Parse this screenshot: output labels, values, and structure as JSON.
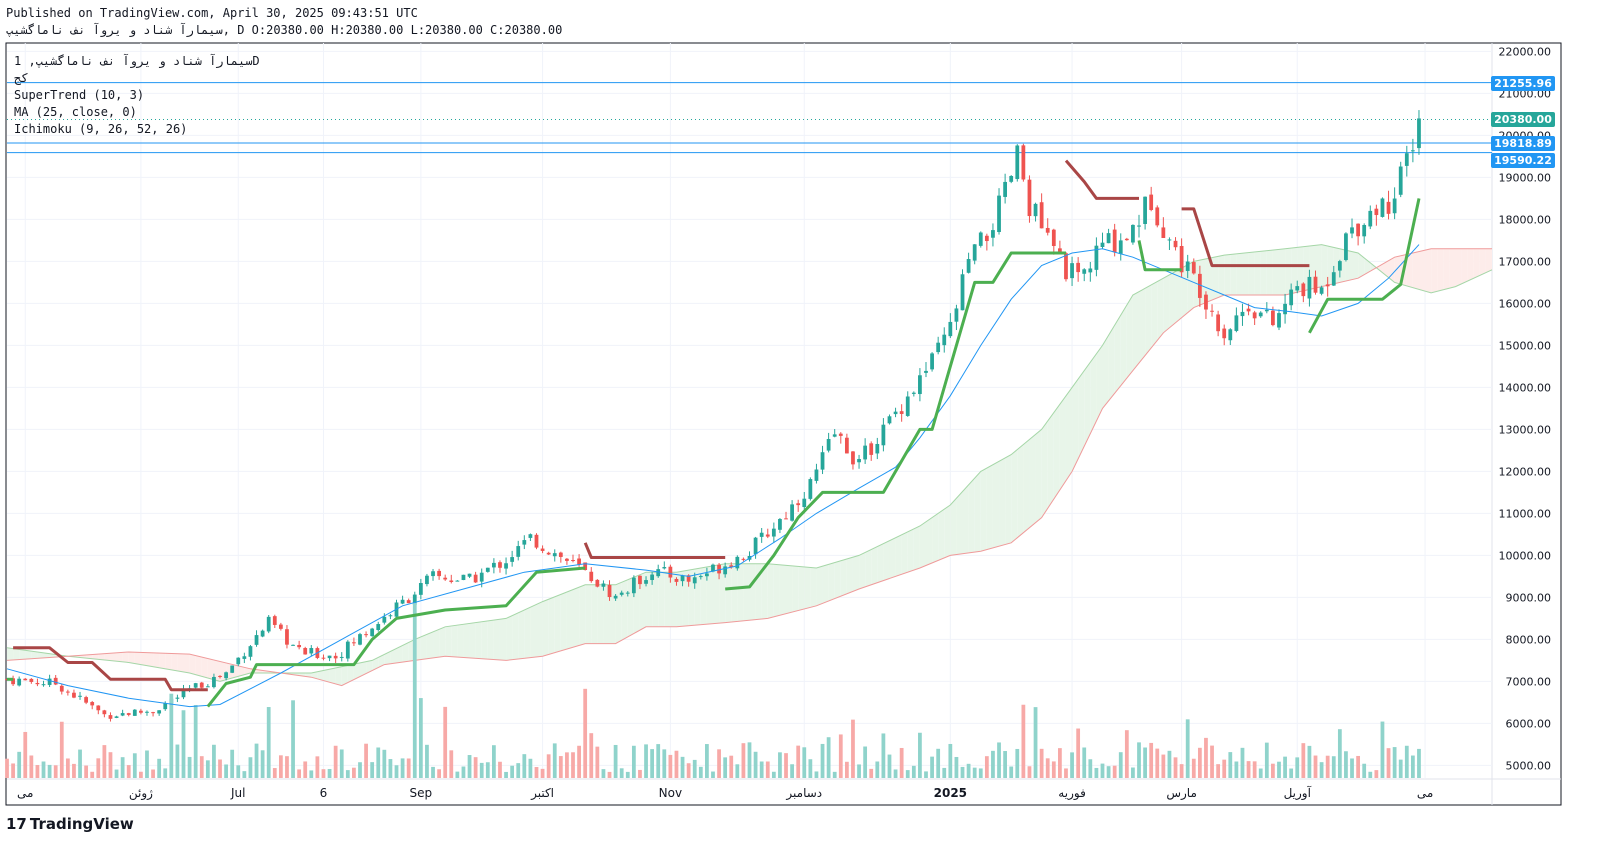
{
  "header": {
    "published": "Published on TradingView.com, April 30, 2025 09:43:51 UTC",
    "ohlc": "سیمارآ شناد و یروآ نف ناماگشیپ, D O:20380.00 H:20380.00 L:20380.00 C:20380.00"
  },
  "legend": {
    "symbol": "سیمارآ شناد و یروآ نف ناماگشیپ, 1D",
    "sub": "کج",
    "supertrend": "SuperTrend (10, 3)",
    "ma": "MA (25, close, 0)",
    "ichimoku": "Ichimoku (9, 26, 52, 26)"
  },
  "price_tags": [
    {
      "value": "21255.96",
      "color": "#2196f3"
    },
    {
      "value": "20380.00",
      "color": "#26a69a"
    },
    {
      "value": "19818.89",
      "color": "#2196f3"
    },
    {
      "value": "19590.22",
      "color": "#2196f3"
    }
  ],
  "footer": {
    "brand": "TradingView",
    "logo": "17"
  },
  "colors": {
    "up": "#26a69a",
    "down": "#ef5350",
    "vol_up": "#8fd3cb",
    "vol_down": "#f7a9a7",
    "supertrend_up": "#4caf50",
    "supertrend_down": "#a94646",
    "ma": "#2196f3",
    "cloud_bull": "#e8f5e9",
    "cloud_bear": "#fdecea",
    "grid": "#f0f3fa",
    "axis": "#131722"
  },
  "chart_data": {
    "type": "candlestick",
    "title": "سیمارآ شناد و یروآ نف ناماگشیپ, 1D",
    "ylim": [
      4700,
      22200
    ],
    "y_ticks": [
      5000,
      6000,
      7000,
      8000,
      9000,
      10000,
      11000,
      12000,
      13000,
      14000,
      15000,
      16000,
      17000,
      18000,
      19000,
      20000,
      21000,
      22000
    ],
    "y_tick_labels": [
      "5000.00",
      "6000.00",
      "7000.00",
      "8000.00",
      "9000.00",
      "10000.00",
      "11000.00",
      "12000.00",
      "13000.00",
      "14000.00",
      "15000.00",
      "16000.00",
      "17000.00",
      "18000.00",
      "19000.00",
      "20000.00",
      "21000.00",
      "22000.00"
    ],
    "x_range": [
      0,
      244
    ],
    "x_ticks": [
      {
        "label": "می",
        "x": 3
      },
      {
        "label": "ژوئن",
        "x": 22
      },
      {
        "label": "Jul",
        "x": 38
      },
      {
        "label": "6",
        "x": 52
      },
      {
        "label": "Sep",
        "x": 68
      },
      {
        "label": "اکتبر",
        "x": 88
      },
      {
        "label": "Nov",
        "x": 109
      },
      {
        "label": "دسامبر",
        "x": 131
      },
      {
        "label": "2025",
        "x": 155
      },
      {
        "label": "فوریه",
        "x": 175
      },
      {
        "label": "مارس",
        "x": 193
      },
      {
        "label": "آوریل",
        "x": 212
      },
      {
        "label": "می",
        "x": 233
      }
    ],
    "horizontal_lines": [
      21255.96,
      19818.89,
      19590.22
    ],
    "last_price_line": 20380.0,
    "candle_anchors": [
      [
        0,
        7050
      ],
      [
        8,
        6950
      ],
      [
        16,
        6200
      ],
      [
        24,
        6300
      ],
      [
        30,
        6800
      ],
      [
        36,
        7200
      ],
      [
        40,
        7900
      ],
      [
        43,
        8400
      ],
      [
        48,
        7700
      ],
      [
        54,
        7600
      ],
      [
        60,
        8300
      ],
      [
        66,
        9000
      ],
      [
        70,
        9500
      ],
      [
        76,
        9400
      ],
      [
        82,
        9900
      ],
      [
        86,
        10400
      ],
      [
        94,
        9700
      ],
      [
        100,
        9000
      ],
      [
        106,
        9650
      ],
      [
        112,
        9400
      ],
      [
        118,
        9800
      ],
      [
        122,
        10100
      ],
      [
        128,
        11000
      ],
      [
        132,
        11700
      ],
      [
        136,
        12900
      ],
      [
        140,
        12200
      ],
      [
        144,
        13000
      ],
      [
        148,
        13800
      ],
      [
        152,
        14600
      ],
      [
        155,
        15400
      ],
      [
        158,
        17000
      ],
      [
        161,
        17600
      ],
      [
        164,
        18600
      ],
      [
        166,
        19500
      ],
      [
        168,
        18400
      ],
      [
        172,
        17200
      ],
      [
        176,
        16500
      ],
      [
        180,
        17400
      ],
      [
        184,
        17600
      ],
      [
        188,
        18500
      ],
      [
        192,
        17200
      ],
      [
        196,
        16400
      ],
      [
        200,
        15300
      ],
      [
        204,
        16000
      ],
      [
        208,
        15500
      ],
      [
        212,
        16400
      ],
      [
        216,
        16300
      ],
      [
        220,
        17600
      ],
      [
        224,
        18200
      ],
      [
        228,
        18500
      ],
      [
        232,
        20380
      ]
    ],
    "supertrend": {
      "segments": [
        {
          "trend": "up",
          "points": [
            [
              0,
              7050
            ],
            [
              1,
              7050
            ]
          ]
        },
        {
          "trend": "down",
          "points": [
            [
              1,
              7800
            ],
            [
              7,
              7800
            ],
            [
              10,
              7450
            ],
            [
              14,
              7450
            ],
            [
              17,
              7050
            ],
            [
              26,
              7050
            ],
            [
              27,
              6800
            ],
            [
              33,
              6800
            ]
          ]
        },
        {
          "trend": "up",
          "points": [
            [
              33,
              6400
            ],
            [
              36,
              6950
            ],
            [
              40,
              7100
            ],
            [
              41,
              7400
            ],
            [
              54,
              7400
            ],
            [
              57,
              7400
            ],
            [
              60,
              8000
            ],
            [
              64,
              8500
            ],
            [
              72,
              8700
            ],
            [
              82,
              8800
            ],
            [
              87,
              9600
            ],
            [
              95,
              9700
            ]
          ]
        },
        {
          "trend": "down",
          "points": [
            [
              95,
              10300
            ],
            [
              96,
              9950
            ],
            [
              118,
              9950
            ]
          ]
        },
        {
          "trend": "up",
          "points": [
            [
              118,
              9200
            ],
            [
              122,
              9250
            ],
            [
              126,
              10000
            ],
            [
              130,
              10900
            ],
            [
              134,
              11500
            ],
            [
              144,
              11500
            ],
            [
              150,
              13000
            ],
            [
              152,
              13000
            ],
            [
              155,
              14500
            ],
            [
              159,
              16500
            ],
            [
              162,
              16500
            ],
            [
              165,
              17200
            ],
            [
              174,
              17200
            ]
          ]
        },
        {
          "trend": "down",
          "points": [
            [
              174,
              19400
            ],
            [
              177,
              18900
            ],
            [
              179,
              18500
            ],
            [
              186,
              18500
            ]
          ]
        },
        {
          "trend": "up",
          "points": [
            [
              186,
              17500
            ],
            [
              187,
              16800
            ],
            [
              189,
              16800
            ],
            [
              193,
              16800
            ]
          ]
        },
        {
          "trend": "down",
          "points": [
            [
              193,
              18250
            ],
            [
              195,
              18250
            ],
            [
              198,
              16900
            ],
            [
              214,
              16900
            ]
          ]
        },
        {
          "trend": "up",
          "points": [
            [
              214,
              15300
            ],
            [
              217,
              16100
            ],
            [
              226,
              16100
            ],
            [
              229,
              16450
            ],
            [
              232,
              18500
            ]
          ]
        }
      ]
    },
    "ma": [
      [
        0,
        7300
      ],
      [
        10,
        6900
      ],
      [
        20,
        6600
      ],
      [
        30,
        6400
      ],
      [
        35,
        6450
      ],
      [
        45,
        7200
      ],
      [
        55,
        8000
      ],
      [
        65,
        8800
      ],
      [
        75,
        9200
      ],
      [
        85,
        9600
      ],
      [
        95,
        9800
      ],
      [
        105,
        9650
      ],
      [
        112,
        9500
      ],
      [
        120,
        9750
      ],
      [
        127,
        10400
      ],
      [
        133,
        11000
      ],
      [
        140,
        11600
      ],
      [
        146,
        12100
      ],
      [
        150,
        12800
      ],
      [
        155,
        13800
      ],
      [
        160,
        15000
      ],
      [
        165,
        16100
      ],
      [
        170,
        16900
      ],
      [
        175,
        17200
      ],
      [
        180,
        17300
      ],
      [
        185,
        17100
      ],
      [
        190,
        16800
      ],
      [
        195,
        16500
      ],
      [
        200,
        16200
      ],
      [
        205,
        15900
      ],
      [
        211,
        15800
      ],
      [
        216,
        15700
      ],
      [
        222,
        16000
      ],
      [
        227,
        16600
      ],
      [
        232,
        17400
      ]
    ],
    "ichimoku_cloud": {
      "span_a": [
        [
          0,
          7800
        ],
        [
          10,
          7600
        ],
        [
          20,
          7450
        ],
        [
          30,
          7200
        ],
        [
          35,
          7000
        ],
        [
          40,
          7200
        ],
        [
          50,
          7200
        ],
        [
          60,
          7500
        ],
        [
          67,
          8000
        ],
        [
          72,
          8300
        ],
        [
          82,
          8500
        ],
        [
          88,
          8900
        ],
        [
          95,
          9300
        ],
        [
          100,
          9300
        ],
        [
          105,
          9600
        ],
        [
          110,
          9600
        ],
        [
          118,
          9800
        ],
        [
          125,
          9800
        ],
        [
          133,
          9700
        ],
        [
          140,
          10000
        ],
        [
          150,
          10700
        ],
        [
          155,
          11200
        ],
        [
          160,
          12000
        ],
        [
          165,
          12400
        ],
        [
          170,
          13000
        ],
        [
          175,
          14000
        ],
        [
          180,
          15000
        ],
        [
          185,
          16200
        ],
        [
          190,
          16600
        ],
        [
          195,
          17000
        ],
        [
          200,
          17150
        ],
        [
          210,
          17300
        ],
        [
          216,
          17400
        ],
        [
          222,
          17200
        ],
        [
          228,
          16500
        ],
        [
          234,
          16250
        ],
        [
          238,
          16400
        ],
        [
          244,
          16800
        ]
      ],
      "span_b": [
        [
          0,
          7500
        ],
        [
          10,
          7600
        ],
        [
          20,
          7700
        ],
        [
          30,
          7650
        ],
        [
          40,
          7300
        ],
        [
          50,
          7100
        ],
        [
          55,
          6900
        ],
        [
          62,
          7400
        ],
        [
          67,
          7500
        ],
        [
          72,
          7600
        ],
        [
          82,
          7500
        ],
        [
          88,
          7600
        ],
        [
          95,
          7900
        ],
        [
          100,
          7900
        ],
        [
          105,
          8300
        ],
        [
          110,
          8300
        ],
        [
          118,
          8400
        ],
        [
          125,
          8500
        ],
        [
          133,
          8800
        ],
        [
          140,
          9200
        ],
        [
          150,
          9700
        ],
        [
          155,
          10000
        ],
        [
          160,
          10100
        ],
        [
          165,
          10300
        ],
        [
          170,
          10900
        ],
        [
          175,
          12000
        ],
        [
          180,
          13500
        ],
        [
          185,
          14400
        ],
        [
          190,
          15300
        ],
        [
          195,
          15900
        ],
        [
          200,
          16200
        ],
        [
          210,
          16200
        ],
        [
          216,
          16400
        ],
        [
          222,
          16600
        ],
        [
          228,
          17100
        ],
        [
          234,
          17300
        ],
        [
          244,
          17300
        ]
      ]
    },
    "volume_axis_max": 7000
  }
}
